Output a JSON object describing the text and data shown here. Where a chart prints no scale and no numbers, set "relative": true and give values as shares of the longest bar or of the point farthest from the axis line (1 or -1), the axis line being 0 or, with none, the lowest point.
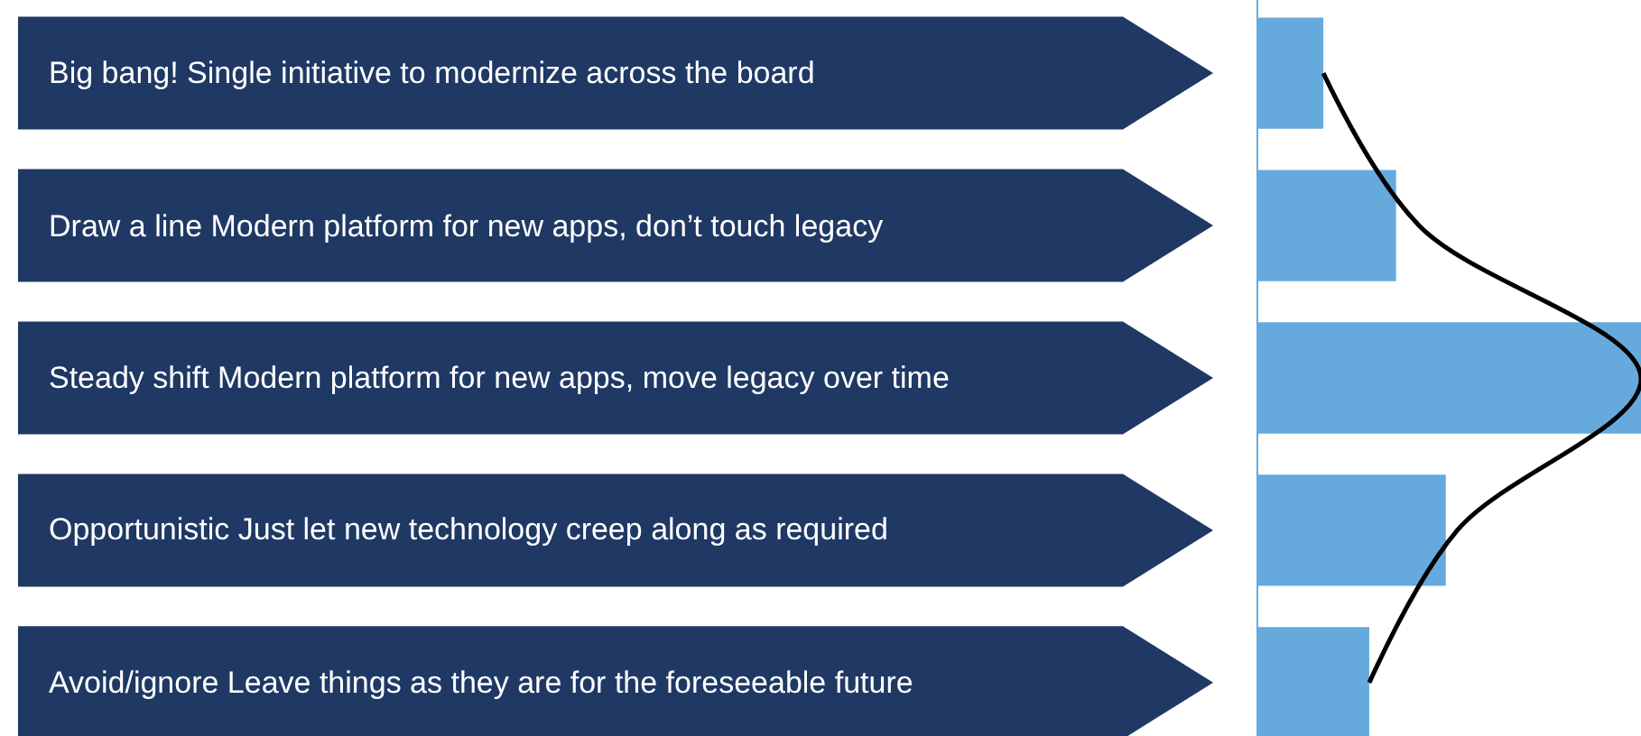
{
  "chart_data": {
    "type": "bar",
    "orientation": "horizontal",
    "relative": true,
    "marker": "none",
    "categories": [
      "Big bang! Single initiative to modernize across the board",
      "Draw a line Modern platform for new apps, don’t touch legacy",
      "Steady shift Modern platform for new apps, move legacy over time",
      "Opportunistic Just let new technology creep along as required",
      "Avoid/ignore Leave things as they are for the foreseeable future"
    ],
    "series": [
      {
        "color": "#66aadd",
        "values": [
          0.17,
          0.36,
          1,
          0.49,
          0.29
        ]
      },
      {
        "type": "line",
        "color": "#000000",
        "values": [
          0.17,
          0.42,
          1,
          0.52,
          0.29
        ]
      }
    ]
  }
}
